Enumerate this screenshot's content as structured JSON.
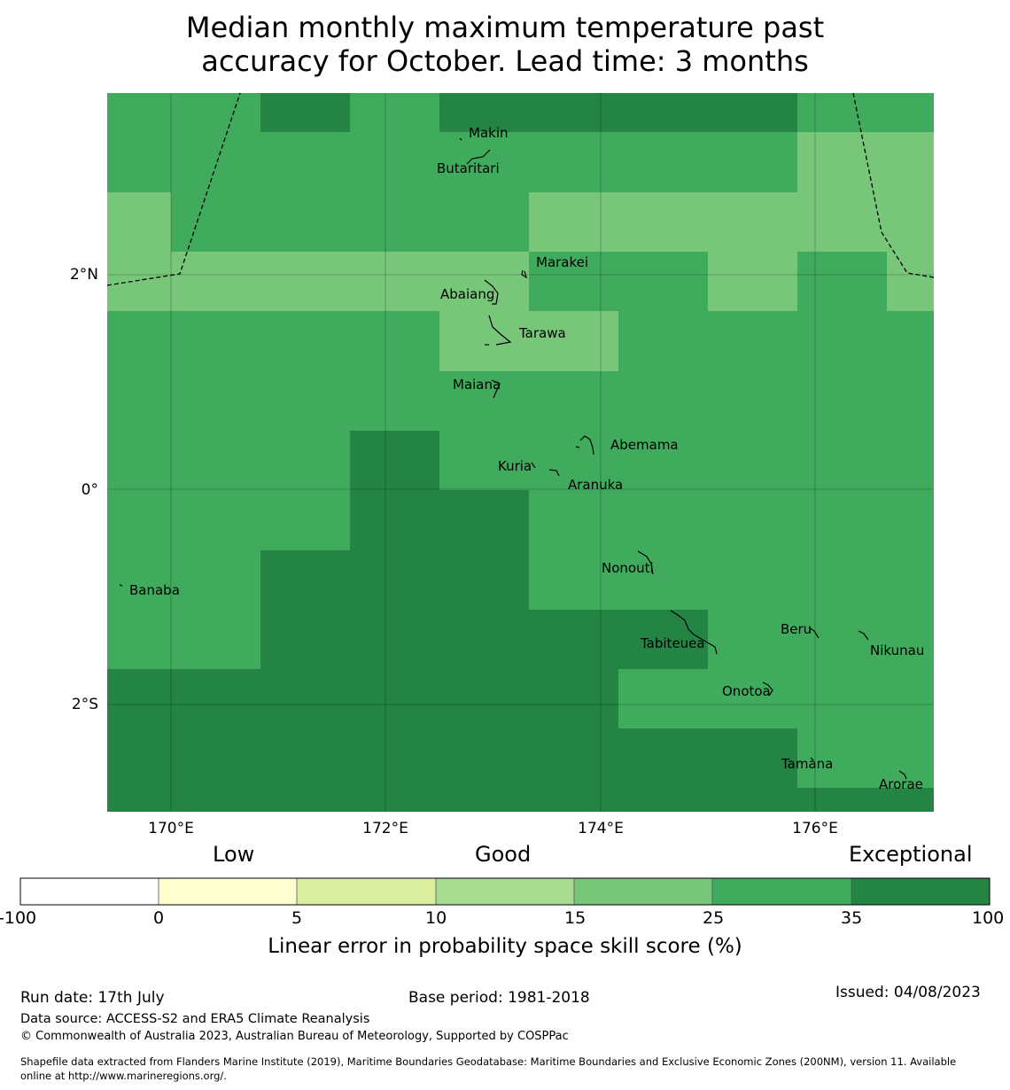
{
  "title": {
    "line1": "Median monthly maximum temperature past",
    "line2": "accuracy for October. Lead time: 3 months"
  },
  "map": {
    "lat_ticks": [
      "2°N",
      "0°",
      "2°S"
    ],
    "lon_ticks": [
      "170°E",
      "172°E",
      "174°E",
      "176°E"
    ],
    "places": [
      "Makin",
      "Butaritari",
      "Marakei",
      "Abaiang",
      "Tarawa",
      "Maiana",
      "Abemama",
      "Kuria",
      "Aranuka",
      "Nonouti",
      "Banaba",
      "Beru",
      "Nikunau",
      "Tabiteuea",
      "Onotoa",
      "Tamana",
      "Arorae"
    ]
  },
  "colorbar": {
    "categories": [
      "Low",
      "Good",
      "Exceptional"
    ],
    "ticks": [
      "-100",
      "0",
      "5",
      "10",
      "15",
      "25",
      "35",
      "100"
    ],
    "colors": [
      "#ffffff",
      "#fefecf",
      "#dbeea0",
      "#a9dc8e",
      "#78c679",
      "#41ab5d",
      "#238443"
    ],
    "label": "Linear error in probability space skill score (%)"
  },
  "footer": {
    "run_date": "Run date: 17th July",
    "base_period": "Base period: 1981-2018",
    "issued": "Issued: 04/08/2023",
    "data_source": "Data source: ACCESS-S2 and ERA5 Climate Reanalysis",
    "copyright": "© Commonwealth of Australia 2023, Australian Bureau of Meteorology, Supported by COSPPac",
    "shapefile_line1": "Shapefile data extracted from Flanders Marine Institute (2019), Maritime Boundaries Geodatabase: Maritime Boundaries and Exclusive Economic Zones (200NM), version 11. Available",
    "shapefile_line2": "online at http://www.marineregions.org/."
  }
}
